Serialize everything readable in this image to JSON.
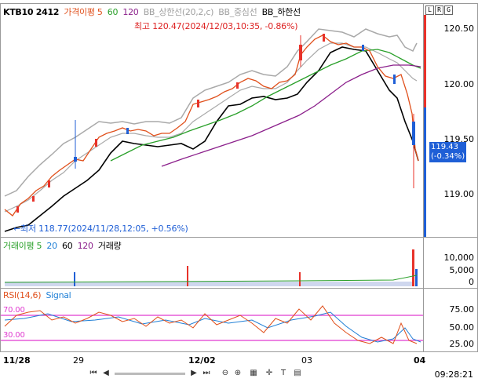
{
  "legend": {
    "symbol": "KTB10 2412",
    "items": [
      {
        "label": "가격이평 5",
        "color": "#e0501c"
      },
      {
        "label": "60",
        "color": "#2aa02a"
      },
      {
        "label": "120",
        "color": "#8b1f8b"
      },
      {
        "label": "BB_상한선(20,2,c)",
        "color": "#a0a0a0"
      },
      {
        "label": "BB_중심선",
        "color": "#a0a0a0"
      },
      {
        "label": "BB_하한선",
        "color": "#000000"
      }
    ]
  },
  "corner_buttons": [
    "L",
    "R",
    "G"
  ],
  "price_axis": [
    "120.50",
    "120.00",
    "119.50",
    "119.00"
  ],
  "current_price": {
    "value": "119.43",
    "change": "(-0.34%)"
  },
  "high_note": "최고 120.47(2024/12/03,10:35, -0.86%)",
  "low_note": "최저 118.77(2024/11/28,12:05, +0.56%)",
  "volume_legend": {
    "items": [
      {
        "label": "거래이평 5",
        "color": "#2aa02a"
      },
      {
        "label": "20",
        "color": "#1f7fd6"
      },
      {
        "label": "60",
        "color": "#000000"
      },
      {
        "label": "120",
        "color": "#8b1f8b"
      },
      {
        "label": "거래량",
        "color": "#000000"
      }
    ]
  },
  "volume_axis": [
    "10,000",
    "5,000",
    "0"
  ],
  "rsi_legend": {
    "items": [
      {
        "label": "RSI(14,6)",
        "color": "#e0501c"
      },
      {
        "label": "Signal",
        "color": "#1f7fd6"
      }
    ]
  },
  "rsi_axis": [
    "75.00",
    "50.00",
    "25.00"
  ],
  "rsi_levels": {
    "upper": "70.00",
    "lower": "30.00"
  },
  "x_axis": [
    "11/28",
    "29",
    "12/02",
    "03",
    "04"
  ],
  "clock": "09:28:21",
  "colors": {
    "up": "#e8322a",
    "down": "#1f5fd6",
    "ma5": "#e0501c",
    "ma60": "#2aa02a",
    "ma120": "#8b1f8b",
    "bb": "#a9a9a9",
    "bbmid": "#000000",
    "rsi_band": "#e03ad0"
  }
}
